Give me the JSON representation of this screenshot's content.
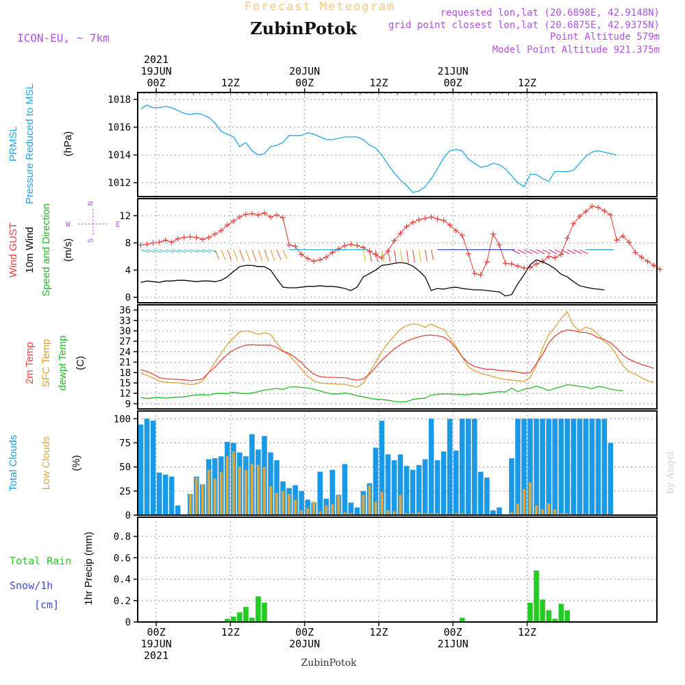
{
  "header": {
    "title_top": "Forecast Meteogram",
    "location": "ZubinPotok",
    "model": "ICON-EU, ~ 7km",
    "requested": "requested lon,lat (20.6898E, 42.9148N)",
    "closest": "grid point closest lon,lat (20.6875E, 42.9375N)",
    "point_alt": "Point Altitude 579m",
    "model_alt": "Model Point Altitude 921.375m",
    "footer_location": "ZubinPotok",
    "credit": "by Angel"
  },
  "colors": {
    "pressure": "#1aa7e6",
    "gust": "#e8413c",
    "wind": "#000000",
    "dir_label": "#22bb22",
    "compass": "#b060e0",
    "t2m": "#e8413c",
    "tsfc": "#e0a030",
    "dewpt": "#22bb22",
    "total_cloud": "#1a9ae6",
    "low_cloud": "#d8a848",
    "rain": "#22cc22",
    "snow": "#4444dd",
    "title": "#f0c880",
    "meta": "#b050e0"
  },
  "time_axis": {
    "top_labels": [
      {
        "t": 3,
        "lines": [
          "2021",
          "19JUN",
          "00Z"
        ]
      },
      {
        "t": 15,
        "lines": [
          "12Z"
        ]
      },
      {
        "t": 27,
        "lines": [
          "20JUN",
          "00Z"
        ]
      },
      {
        "t": 39,
        "lines": [
          "12Z"
        ]
      },
      {
        "t": 51,
        "lines": [
          "21JUN",
          "00Z"
        ]
      },
      {
        "t": 63,
        "lines": [
          "12Z"
        ]
      }
    ],
    "bottom_labels": [
      {
        "t": 3,
        "lines": [
          "00Z",
          "19JUN",
          "2021"
        ]
      },
      {
        "t": 15,
        "lines": [
          "12Z"
        ]
      },
      {
        "t": 27,
        "lines": [
          "00Z",
          "20JUN"
        ]
      },
      {
        "t": 39,
        "lines": [
          "12Z"
        ]
      },
      {
        "t": 51,
        "lines": [
          "00Z",
          "21JUN"
        ]
      },
      {
        "t": 63,
        "lines": [
          "12Z"
        ]
      }
    ]
  },
  "chart_data": [
    {
      "type": "line",
      "id": "pressure",
      "ylabels": [
        "PRMSL",
        "Pressure Reduced to MSL"
      ],
      "unit": "(hPa)",
      "ylim": [
        1011,
        1018.5
      ],
      "yticks": [
        1012,
        1014,
        1016,
        1018
      ],
      "series": [
        {
          "values": [
            1017.3,
            1017.6,
            1017.4,
            1017.4,
            1017.5,
            1017.4,
            1017.2,
            1017.0,
            1016.9,
            1017.0,
            1016.9,
            1016.7,
            1016.3,
            1015.7,
            1015.5,
            1015.3,
            1014.6,
            1014.9,
            1014.3,
            1014.0,
            1014.1,
            1014.6,
            1014.7,
            1014.9,
            1015.4,
            1015.4,
            1015.4,
            1015.6,
            1015.5,
            1015.3,
            1015.1,
            1015.1,
            1015.2,
            1015.3,
            1015.3,
            1015.3,
            1015.1,
            1014.7,
            1014.5,
            1014.0,
            1013.3,
            1012.7,
            1012.2,
            1011.8,
            1011.3,
            1011.4,
            1011.7,
            1012.3,
            1013.0,
            1013.8,
            1014.3,
            1014.4,
            1014.3,
            1013.7,
            1013.4,
            1013.1,
            1013.2,
            1013.4,
            1013.3,
            1013.0,
            1012.5,
            1012.0,
            1011.7,
            1012.6,
            1012.6,
            1012.3,
            1012.1,
            1012.8,
            1012.8,
            1012.8,
            1012.9,
            1013.4,
            1013.9,
            1014.2,
            1014.3,
            1014.2,
            1014.1,
            1014.0
          ]
        }
      ]
    },
    {
      "type": "line",
      "id": "wind",
      "ylabels_gust": "Wind GUST",
      "ylabels_wind": "10m Wind",
      "ylabels_dir": "Speed and Direction",
      "unit": "(m/s)",
      "compass": {
        "n": "N",
        "s": "S",
        "w": "W",
        "e": "E"
      },
      "ylim": [
        -0.8,
        14.5
      ],
      "yticks": [
        0,
        4,
        8,
        12
      ],
      "series": [
        {
          "name": "gust",
          "values": [
            7.7,
            7.8,
            8.0,
            8.1,
            8.4,
            8.1,
            8.6,
            8.8,
            8.9,
            8.8,
            8.5,
            8.8,
            9.3,
            9.8,
            10.6,
            11.2,
            11.8,
            12.2,
            12.3,
            12.1,
            12.4,
            11.8,
            12.1,
            11.7,
            7.7,
            7.5,
            6.3,
            5.7,
            5.3,
            5.5,
            5.9,
            6.6,
            7.1,
            7.6,
            7.8,
            7.6,
            7.3,
            6.8,
            6.3,
            5.8,
            6.8,
            8.3,
            9.4,
            10.4,
            11.0,
            11.4,
            11.6,
            11.8,
            11.5,
            11.3,
            10.6,
            9.8,
            9.1,
            6.4,
            3.5,
            3.3,
            5.2,
            9.3,
            7.7,
            5.0,
            4.9,
            4.6,
            4.3,
            4.4,
            4.9,
            5.3,
            6.0,
            5.8,
            6.3,
            8.7,
            10.8,
            11.9,
            12.6,
            13.4,
            13.2,
            12.7,
            12.1,
            8.4,
            9.0,
            8.1,
            6.6,
            5.9,
            5.3,
            4.7,
            4.1
          ]
        },
        {
          "name": "wind",
          "values": [
            2.2,
            2.4,
            2.3,
            2.2,
            2.4,
            2.4,
            2.5,
            2.5,
            2.4,
            2.3,
            2.4,
            2.4,
            2.3,
            2.5,
            3.0,
            3.8,
            4.5,
            4.7,
            4.7,
            4.5,
            4.5,
            4.0,
            2.7,
            1.5,
            1.4,
            1.4,
            1.5,
            1.6,
            1.6,
            1.7,
            1.6,
            1.6,
            1.5,
            1.3,
            1.0,
            1.5,
            3.0,
            3.5,
            4.0,
            4.7,
            4.8,
            5.0,
            5.1,
            5.0,
            4.6,
            3.9,
            3.0,
            1.0,
            1.3,
            1.2,
            1.4,
            1.5,
            1.3,
            1.2,
            1.1,
            1.1,
            1.0,
            0.9,
            0.8,
            0.2,
            0.4,
            2.0,
            3.3,
            4.8,
            5.5,
            5.2,
            4.8,
            4.2,
            3.4,
            3.0,
            2.3,
            1.7,
            1.5,
            1.3,
            1.2,
            1.1
          ]
        }
      ]
    },
    {
      "type": "line",
      "id": "temperature",
      "ylabels": [
        "2m Temp",
        "SFC Temp",
        "dewpt Temp"
      ],
      "unit": "(C)",
      "ylim": [
        7.5,
        37.5
      ],
      "yticks": [
        9,
        12,
        15,
        18,
        21,
        24,
        27,
        30,
        33,
        36
      ],
      "series": [
        {
          "name": "2m Temp",
          "values": [
            18.8,
            18.3,
            17.5,
            16.5,
            16.2,
            16.1,
            16.0,
            15.9,
            15.6,
            15.8,
            16.2,
            18.0,
            19.5,
            21.5,
            23.2,
            24.5,
            25.3,
            25.9,
            26.0,
            25.9,
            25.9,
            25.9,
            25.2,
            24.1,
            23.5,
            22.3,
            20.8,
            19.0,
            17.5,
            16.8,
            16.6,
            16.6,
            16.5,
            16.5,
            16.1,
            15.8,
            16.2,
            17.5,
            19.5,
            21.5,
            23.2,
            24.8,
            26.0,
            27.0,
            27.7,
            28.3,
            28.7,
            28.8,
            28.6,
            28.2,
            27.0,
            25.0,
            22.5,
            20.7,
            19.7,
            19.3,
            18.9,
            18.9,
            18.6,
            18.5,
            18.4,
            18.1,
            17.8,
            18.0,
            20.5,
            23.2,
            26.5,
            28.5,
            29.7,
            30.3,
            30.1,
            29.6,
            29.5,
            29.0,
            28.0,
            27.5,
            26.5,
            25.0,
            23.0,
            21.8,
            21.0,
            20.3,
            19.8,
            19.2
          ]
        },
        {
          "name": "SFC Temp",
          "values": [
            17.8,
            17.2,
            16.4,
            15.5,
            15.2,
            15.1,
            15.0,
            14.8,
            14.5,
            14.7,
            15.5,
            18.0,
            21.0,
            23.5,
            26.0,
            28.0,
            29.7,
            30.0,
            29.6,
            29.0,
            29.4,
            29.0,
            26.5,
            24.3,
            23.0,
            21.0,
            19.0,
            17.0,
            15.6,
            15.0,
            14.8,
            14.8,
            14.6,
            14.6,
            14.2,
            13.7,
            15.0,
            18.0,
            21.0,
            24.0,
            26.5,
            28.5,
            30.5,
            31.5,
            32.0,
            31.8,
            31.0,
            32.0,
            31.0,
            30.5,
            28.0,
            25.5,
            22.5,
            19.6,
            18.5,
            17.8,
            17.3,
            16.8,
            16.3,
            16.0,
            15.8,
            15.6,
            15.5,
            16.5,
            20.0,
            25.0,
            29.0,
            31.0,
            33.5,
            35.5,
            31.5,
            30.0,
            31.0,
            30.5,
            29.0,
            27.0,
            25.5,
            23.0,
            20.0,
            18.3,
            17.5,
            16.5,
            15.6,
            15.2
          ]
        },
        {
          "name": "dewpt Temp",
          "values": [
            10.8,
            10.5,
            10.7,
            10.8,
            10.6,
            10.8,
            10.9,
            11.0,
            11.3,
            11.5,
            11.6,
            11.5,
            11.9,
            12.0,
            11.9,
            12.3,
            12.0,
            11.9,
            12.1,
            12.5,
            12.9,
            13.2,
            13.4,
            13.1,
            13.8,
            13.9,
            13.7,
            13.5,
            13.2,
            12.7,
            12.2,
            11.8,
            11.8,
            12.1,
            11.8,
            11.3,
            11.0,
            10.6,
            10.3,
            10.2,
            10.0,
            9.7,
            9.5,
            9.6,
            10.2,
            10.5,
            10.6,
            11.5,
            11.7,
            11.8,
            11.8,
            11.7,
            11.6,
            11.6,
            11.9,
            11.7,
            12.0,
            12.3,
            12.5,
            12.4,
            13.5,
            12.5,
            13.2,
            13.4,
            14.1,
            13.5,
            12.8,
            13.4,
            13.9,
            14.5,
            14.3,
            14.0,
            13.8,
            13.3,
            14.0,
            13.7,
            13.2,
            12.9,
            12.7
          ]
        }
      ]
    },
    {
      "type": "bar",
      "id": "clouds",
      "ylabels": [
        "Total Clouds",
        "Low Clouds"
      ],
      "unit": "(%)",
      "ylim": [
        0,
        108
      ],
      "yticks": [
        0,
        25,
        50,
        75,
        100
      ],
      "series": [
        {
          "name": "Total Clouds",
          "values": [
            94,
            100,
            98,
            44,
            42,
            40,
            10,
            0,
            22,
            40,
            32,
            58,
            59,
            61,
            76,
            75,
            65,
            61,
            84,
            68,
            82,
            65,
            57,
            35,
            28,
            31,
            25,
            16,
            13,
            45,
            17,
            47,
            21,
            53,
            13,
            8,
            25,
            33,
            70,
            98,
            63,
            57,
            63,
            51,
            47,
            52,
            58,
            100,
            57,
            66,
            100,
            67,
            100,
            100,
            100,
            45,
            39,
            5,
            8,
            0,
            59,
            100,
            100,
            100,
            100,
            100,
            100,
            100,
            100,
            100,
            100,
            100,
            100,
            100,
            100,
            100,
            75
          ]
        },
        {
          "name": "Low Clouds",
          "values": [
            0,
            0,
            0,
            0,
            0,
            0,
            0,
            0,
            22,
            39,
            32,
            47,
            38,
            45,
            61,
            66,
            50,
            47,
            53,
            52,
            50,
            30,
            23,
            25,
            22,
            16,
            5,
            7,
            14,
            4,
            10,
            11,
            20,
            3,
            2,
            1,
            21,
            31,
            14,
            24,
            5,
            4,
            21,
            2,
            2,
            3,
            2,
            2,
            2,
            1,
            1,
            2,
            2,
            1,
            1,
            0,
            0,
            0,
            0,
            0,
            3,
            12,
            27,
            34,
            10,
            6,
            12,
            6,
            2,
            2,
            1,
            1,
            1,
            1,
            1,
            1,
            1
          ]
        }
      ]
    },
    {
      "type": "bar",
      "id": "precip",
      "ylabels_rain": "Total Rain",
      "ylabels_snow": "Snow/1h",
      "ylabels_snow_unit": "[cm]",
      "ylabel": "1hr Precip (mm)",
      "ylim": [
        0,
        0.98
      ],
      "yticks": [
        0,
        0.2,
        0.4,
        0.6,
        0.8
      ],
      "ytick_labels": [
        "0",
        "0.2",
        "0.4",
        "0.6",
        "0.8"
      ],
      "series": [
        {
          "name": "Total Rain",
          "values": [
            0,
            0,
            0,
            0,
            0,
            0,
            0,
            0,
            0,
            0,
            0,
            0,
            0,
            0,
            0.03,
            0.05,
            0.09,
            0.14,
            0.04,
            0.24,
            0.18,
            0,
            0,
            0,
            0,
            0,
            0,
            0,
            0,
            0,
            0,
            0,
            0,
            0,
            0,
            0,
            0,
            0,
            0,
            0,
            0,
            0,
            0,
            0,
            0,
            0,
            0,
            0,
            0,
            0,
            0,
            0,
            0.04,
            0,
            0,
            0,
            0,
            0,
            0,
            0,
            0,
            0,
            0,
            0.18,
            0.48,
            0.21,
            0.11,
            0.03,
            0.17,
            0.11,
            0,
            0,
            0,
            0,
            0,
            0,
            0
          ]
        }
      ]
    }
  ]
}
